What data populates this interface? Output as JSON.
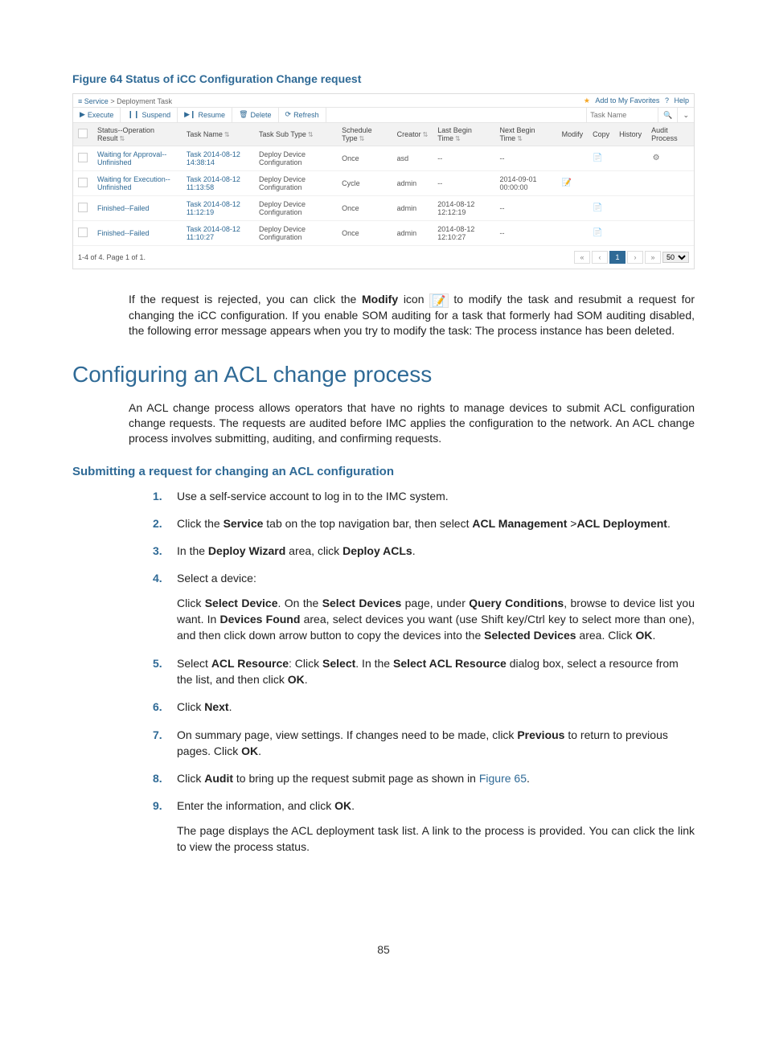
{
  "figure_caption": "Figure 64 Status of iCC Configuration Change request",
  "screenshot": {
    "breadcrumb": {
      "icon": "≡",
      "root": "Service",
      "sep": ">",
      "leaf": "Deployment Task"
    },
    "top_right": {
      "favorites_star": "★",
      "favorites_label": "Add to My Favorites",
      "help_icon": "?",
      "help_label": "Help"
    },
    "toolbar": {
      "execute": {
        "glyph": "▶",
        "label": "Execute"
      },
      "suspend": {
        "glyph": "❙❙",
        "label": "Suspend"
      },
      "resume": {
        "glyph": "▶❙",
        "label": "Resume"
      },
      "delete": {
        "glyph": "🗑",
        "label": "Delete"
      },
      "refresh": {
        "glyph": "⟳",
        "label": "Refresh"
      },
      "search_placeholder": "Task Name",
      "search_icon": "🔍",
      "dd_icon": "⌄"
    },
    "columns": {
      "checkbox": "",
      "status": "Status--Operation Result",
      "task_name": "Task Name",
      "task_sub_type": "Task Sub Type",
      "schedule_type": "Schedule Type",
      "creator": "Creator",
      "last_begin": "Last Begin Time",
      "next_begin": "Next Begin Time",
      "modify": "Modify",
      "copy": "Copy",
      "history": "History",
      "audit": "Audit Process",
      "sort_glyph": "⇅"
    },
    "rows": [
      {
        "status": "Waiting for Approval--Unfinished",
        "task": "Task 2014-08-12 14:38:14",
        "subtype": "Deploy Device Configuration",
        "sched": "Once",
        "creator": "asd",
        "last": "--",
        "next": "--",
        "modify": "",
        "copy": "📄",
        "history": "",
        "audit": "⚙"
      },
      {
        "status": "Waiting for Execution--Unfinished",
        "task": "Task 2014-08-12 11:13:58",
        "subtype": "Deploy Device Configuration",
        "sched": "Cycle",
        "creator": "admin",
        "last": "--",
        "next": "2014-09-01 00:00:00",
        "modify": "📝",
        "copy": "",
        "history": "",
        "audit": ""
      },
      {
        "status": "Finished--Failed",
        "task": "Task 2014-08-12 11:12:19",
        "subtype": "Deploy Device Configuration",
        "sched": "Once",
        "creator": "admin",
        "last": "2014-08-12 12:12:19",
        "next": "--",
        "modify": "",
        "copy": "📄",
        "history": "",
        "audit": ""
      },
      {
        "status": "Finished--Failed",
        "task": "Task 2014-08-12 11:10:27",
        "subtype": "Deploy Device Configuration",
        "sched": "Once",
        "creator": "admin",
        "last": "2014-08-12 12:10:27",
        "next": "--",
        "modify": "",
        "copy": "📄",
        "history": "",
        "audit": ""
      }
    ],
    "footer": {
      "summary": "1-4 of 4. Page 1 of 1.",
      "first": "«",
      "prev": "‹",
      "page": "1",
      "next": "›",
      "last": "»",
      "page_size": "50"
    }
  },
  "post_figure_para": {
    "p1": "If the request is rejected, you can click the ",
    "bold_modify": "Modify",
    "p2": " icon ",
    "icon_text": "📝",
    "p3": " to modify the task and resubmit a request for changing the iCC configuration. If you enable SOM auditing for a task that formerly had SOM auditing disabled, the following error message appears when you try to modify the task: The process instance has been deleted."
  },
  "h1": "Configuring an ACL change process",
  "intro_para": "An ACL change process allows operators that have no rights to manage devices to submit ACL configuration change requests. The requests are audited before IMC applies the configuration to the network. An ACL change process involves submitting, auditing, and confirming requests.",
  "h3": "Submitting a request for changing an ACL configuration",
  "steps": {
    "s1": "Use a self-service account to log in to the IMC system.",
    "s2": {
      "a": "Click the ",
      "b": "Service",
      "c": " tab on the top navigation bar, then select ",
      "d": "ACL Management",
      "e": " >",
      "f": "ACL Deployment",
      "g": "."
    },
    "s3": {
      "a": "In the ",
      "b": "Deploy Wizard",
      "c": " area, click ",
      "d": "Deploy ACLs",
      "e": "."
    },
    "s4": {
      "line": "Select a device:",
      "p_a": "Click ",
      "p_b": "Select Device",
      "p_c": ". On the ",
      "p_d": "Select Devices",
      "p_e": " page, under ",
      "p_f": "Query Conditions",
      "p_g": ", browse to device list you want. In ",
      "p_h": "Devices Found",
      "p_i": " area, select devices you want (use Shift key/Ctrl key to select more than one), and then click down arrow button to copy the devices into the ",
      "p_j": "Selected Devices",
      "p_k": " area. Click ",
      "p_l": "OK",
      "p_m": "."
    },
    "s5": {
      "a": "Select ",
      "b": "ACL Resource",
      "c": ": Click ",
      "d": "Select",
      "e": ". In the ",
      "f": "Select ACL Resource",
      "g": " dialog box, select a resource from the list, and then click ",
      "h": "OK",
      "i": "."
    },
    "s6": {
      "a": "Click ",
      "b": "Next",
      "c": "."
    },
    "s7": {
      "a": "On summary page, view settings. If changes need to be made, click ",
      "b": "Previous",
      "c": " to return to previous pages. Click ",
      "d": "OK",
      "e": "."
    },
    "s8": {
      "a": "Click ",
      "b": "Audit",
      "c": " to bring up the request submit page as shown in ",
      "d": "Figure 65",
      "e": "."
    },
    "s9": {
      "a": "Enter the information, and click ",
      "b": "OK",
      "c": ".",
      "p": "The page displays the ACL deployment task list. A link to the process is provided. You can click the link to view the process status."
    }
  },
  "page_number": "85"
}
